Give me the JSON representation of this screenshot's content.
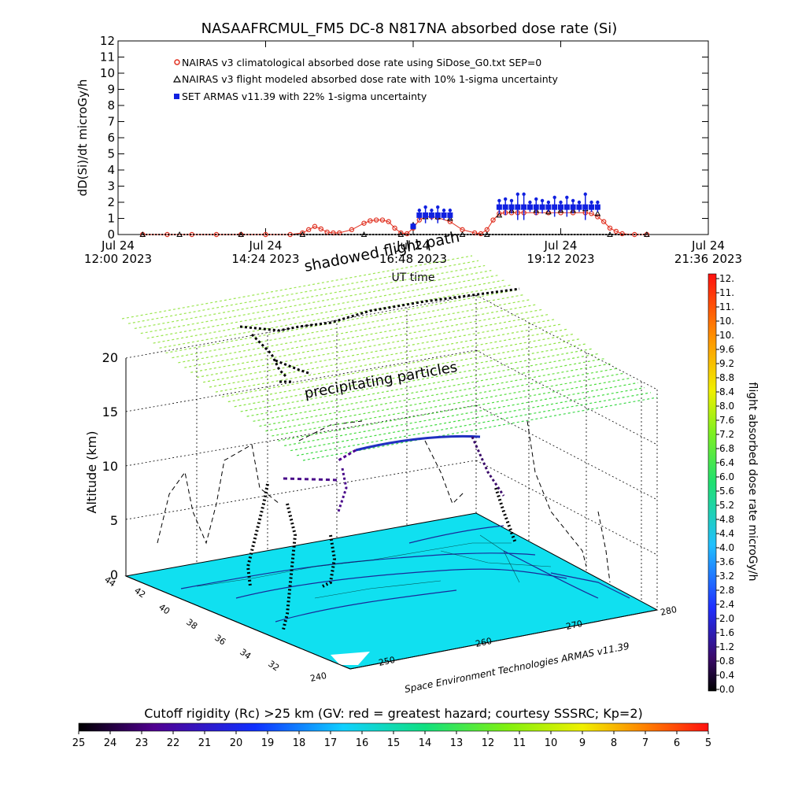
{
  "chart_data": [
    {
      "type": "line",
      "title": "NASAAFRCMUL_FM5 DC-8   N817NA absorbed dose rate (Si)",
      "ylabel": "dD(Si)/dt microGy/h",
      "xlabel": "UT time",
      "ylim": [
        0,
        12
      ],
      "y_ticks": [
        "0",
        "1",
        "2",
        "3",
        "4",
        "5",
        "6",
        "7",
        "8",
        "9",
        "10",
        "11",
        "12"
      ],
      "x_ticks": [
        {
          "line1": "Jul 24",
          "line2": "12:00 2023"
        },
        {
          "line1": "Jul 24",
          "line2": "14:24 2023"
        },
        {
          "line1": "Jul 24",
          "line2": "16:48 2023"
        },
        {
          "line1": "Jul 24",
          "line2": "19:12 2023"
        },
        {
          "line1": "Jul 24",
          "line2": "21:36 2023"
        }
      ],
      "xlim_hours": [
        12.0,
        21.6
      ],
      "legend_position": "top-left",
      "series": [
        {
          "name": "NAIRAS v3 climatological absorbed dose rate using SiDose_G0.txt SEP=0",
          "color": "#e03020",
          "marker": "circle",
          "x": [
            12.4,
            12.8,
            13.2,
            13.6,
            14.0,
            14.4,
            14.8,
            15.0,
            15.1,
            15.2,
            15.3,
            15.4,
            15.5,
            15.6,
            15.8,
            16.0,
            16.1,
            16.2,
            16.3,
            16.4,
            16.5,
            16.6,
            16.7,
            16.8,
            16.9,
            17.0,
            17.1,
            17.2,
            17.4,
            17.6,
            17.8,
            17.9,
            18.0,
            18.1,
            18.2,
            18.3,
            18.4,
            18.5,
            18.6,
            18.8,
            19.0,
            19.2,
            19.4,
            19.6,
            19.7,
            19.8,
            19.9,
            20.0,
            20.1,
            20.2,
            20.4,
            20.6
          ],
          "values": [
            0,
            0,
            0,
            0,
            0,
            0,
            0,
            0.1,
            0.3,
            0.5,
            0.35,
            0.15,
            0.1,
            0.1,
            0.3,
            0.7,
            0.85,
            0.9,
            0.9,
            0.8,
            0.4,
            0.1,
            0.05,
            0.4,
            0.9,
            1.1,
            1.1,
            1.05,
            0.8,
            0.3,
            0.1,
            0.05,
            0.3,
            0.9,
            1.3,
            1.35,
            1.35,
            1.35,
            1.35,
            1.35,
            1.35,
            1.35,
            1.35,
            1.35,
            1.3,
            1.1,
            0.8,
            0.4,
            0.2,
            0.05,
            0,
            0
          ]
        },
        {
          "name": "NAIRAS v3 flight modeled absorbed dose rate with 10% 1-sigma uncertainty",
          "color": "#000000",
          "marker": "triangle",
          "x": [
            12.4,
            13.0,
            14.0,
            15.0,
            16.0,
            16.6,
            16.8,
            17.0,
            17.2,
            17.4,
            17.6,
            18.0,
            18.2,
            18.4,
            18.6,
            18.8,
            19.0,
            19.2,
            19.4,
            19.6,
            19.8,
            20.0,
            20.6
          ],
          "values": [
            0,
            0,
            0,
            0,
            0,
            0,
            0.6,
            1.1,
            1.1,
            1.0,
            0,
            0,
            1.2,
            1.5,
            1.7,
            1.5,
            1.4,
            1.5,
            1.5,
            1.6,
            1.3,
            0,
            0
          ]
        },
        {
          "name": "SET ARMAS v11.39 with 22% 1-sigma uncertainty",
          "color": "#1020e0",
          "marker": "square",
          "x": [
            16.8,
            16.9,
            17.0,
            17.1,
            17.2,
            17.3,
            17.4,
            18.2,
            18.3,
            18.4,
            18.5,
            18.6,
            18.7,
            18.8,
            18.9,
            19.0,
            19.1,
            19.2,
            19.3,
            19.4,
            19.5,
            19.6,
            19.7,
            19.8
          ],
          "values": [
            0.5,
            1.2,
            1.2,
            1.2,
            1.2,
            1.2,
            1.2,
            1.7,
            1.7,
            1.7,
            1.7,
            1.7,
            1.7,
            1.7,
            1.7,
            1.7,
            1.7,
            1.7,
            1.7,
            1.7,
            1.7,
            1.7,
            1.7,
            1.7
          ],
          "errors": [
            0.1,
            0.3,
            0.5,
            0.3,
            0.5,
            0.3,
            0.3,
            0.4,
            0.5,
            0.4,
            0.8,
            0.8,
            0.3,
            0.5,
            0.4,
            0.3,
            0.6,
            0.3,
            0.6,
            0.4,
            0.3,
            0.8,
            0.3,
            0.3
          ]
        }
      ]
    },
    {
      "type": "scatter",
      "subtype": "3d-flight-track",
      "zlabel": "Altitude (km)",
      "z_ticks": [
        "0",
        "5",
        "10",
        "15",
        "20"
      ],
      "y_ticks": [
        "44",
        "42",
        "40",
        "38",
        "36",
        "34",
        "32"
      ],
      "x_ticks": [
        "240",
        "250",
        "260",
        "270",
        "280"
      ],
      "annotations": [
        "shadowed flight path",
        "precipitating particles"
      ],
      "credit": "Space Environment Technologies ARMAS v11.39",
      "colorbar": {
        "label": "flight absorbed dose rate microGy/h",
        "ticks": [
          "12.",
          "11.",
          "11.",
          "10.",
          "10.",
          "9.6",
          "9.2",
          "8.8",
          "8.4",
          "8.0",
          "7.6",
          "7.2",
          "6.8",
          "6.4",
          "6.0",
          "5.6",
          "5.2",
          "4.8",
          "4.4",
          "4.0",
          "3.6",
          "3.2",
          "2.8",
          "2.4",
          "2.0",
          "1.6",
          "1.2",
          "0.8",
          "0.4",
          "0.0"
        ]
      },
      "ground_colorbar": {
        "label": "Cutoff rigidity (Rc) >25 km (GV: red = greatest hazard; courtesy SSSRC; Kp=2)",
        "ticks": [
          "25",
          "24",
          "23",
          "22",
          "21",
          "20",
          "19",
          "18",
          "17",
          "16",
          "15",
          "14",
          "13",
          "12",
          "11",
          "10",
          "9",
          "8",
          "7",
          "6",
          "5"
        ]
      },
      "colors": {
        "ground": "#10e0f0",
        "track_low": "#2010a0",
        "track_shadow": "#000000"
      }
    }
  ]
}
